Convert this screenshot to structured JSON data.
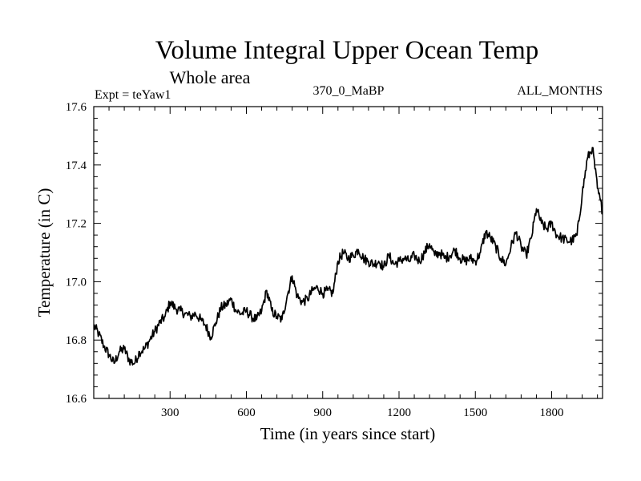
{
  "chart_data": {
    "type": "line",
    "title": "Volume Integral Upper Ocean Temp",
    "subtitle": "Whole area",
    "experiment": "Expt = teYaw1",
    "period": "370_0_MaBP",
    "months": "ALL_MONTHS",
    "xlabel": "Time (in years since start)",
    "ylabel": "Temperature (in C)",
    "xlim": [
      0,
      2000
    ],
    "ylim": [
      16.6,
      17.6
    ],
    "xticks": [
      300,
      600,
      900,
      1200,
      1500,
      1800
    ],
    "xtick_labels": [
      "300",
      "600",
      "900",
      "1200",
      "1500",
      "1800"
    ],
    "yticks": [
      16.6,
      16.8,
      17.0,
      17.2,
      17.4,
      17.6
    ],
    "ytick_labels": [
      "16.6",
      "16.8",
      "17.0",
      "17.2",
      "17.4",
      "17.6"
    ],
    "series": [
      {
        "name": "Volume integral upper ocean temperature",
        "color": "#000000",
        "x": [
          0,
          20,
          40,
          60,
          80,
          100,
          120,
          140,
          160,
          180,
          200,
          220,
          240,
          260,
          280,
          300,
          320,
          340,
          360,
          380,
          400,
          420,
          440,
          460,
          480,
          500,
          520,
          540,
          560,
          580,
          600,
          620,
          640,
          660,
          680,
          700,
          720,
          740,
          760,
          780,
          800,
          820,
          840,
          860,
          880,
          900,
          920,
          940,
          960,
          980,
          1000,
          1020,
          1040,
          1060,
          1080,
          1100,
          1120,
          1140,
          1160,
          1180,
          1200,
          1220,
          1240,
          1260,
          1280,
          1300,
          1320,
          1340,
          1360,
          1380,
          1400,
          1420,
          1440,
          1460,
          1480,
          1500,
          1520,
          1540,
          1560,
          1580,
          1600,
          1620,
          1640,
          1660,
          1680,
          1700,
          1720,
          1740,
          1760,
          1780,
          1800,
          1820,
          1840,
          1860,
          1880,
          1900,
          1920,
          1940,
          1960,
          1980,
          2000
        ],
        "values": [
          16.85,
          16.82,
          16.78,
          16.75,
          16.72,
          16.76,
          16.77,
          16.73,
          16.72,
          16.76,
          16.77,
          16.8,
          16.83,
          16.86,
          16.88,
          16.93,
          16.91,
          16.9,
          16.89,
          16.88,
          16.89,
          16.87,
          16.85,
          16.81,
          16.86,
          16.91,
          16.92,
          16.94,
          16.9,
          16.89,
          16.9,
          16.88,
          16.87,
          16.9,
          16.97,
          16.9,
          16.88,
          16.87,
          16.95,
          17.02,
          16.95,
          16.93,
          16.94,
          16.97,
          16.98,
          16.96,
          16.97,
          16.96,
          17.07,
          17.1,
          17.08,
          17.09,
          17.11,
          17.08,
          17.07,
          17.06,
          17.07,
          17.05,
          17.09,
          17.06,
          17.07,
          17.08,
          17.07,
          17.09,
          17.07,
          17.1,
          17.13,
          17.09,
          17.1,
          17.08,
          17.09,
          17.11,
          17.08,
          17.07,
          17.08,
          17.07,
          17.1,
          17.17,
          17.15,
          17.12,
          17.08,
          17.06,
          17.12,
          17.17,
          17.12,
          17.09,
          17.15,
          17.25,
          17.2,
          17.18,
          17.2,
          17.16,
          17.15,
          17.14,
          17.14,
          17.16,
          17.3,
          17.42,
          17.46,
          17.32,
          17.24
        ]
      }
    ]
  }
}
